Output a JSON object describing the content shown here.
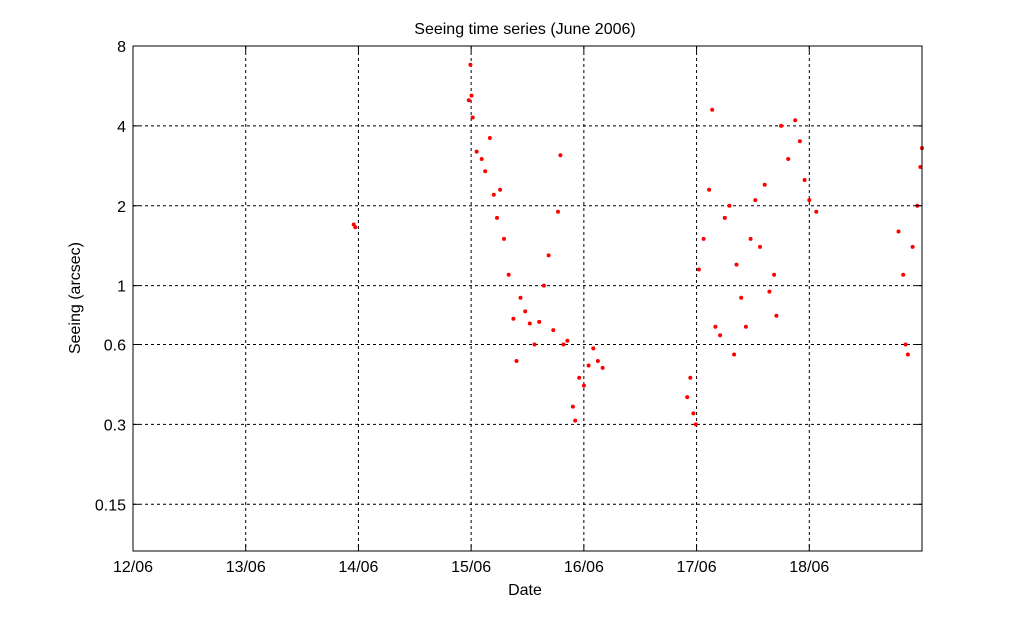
{
  "chart_data": {
    "type": "scatter",
    "title": "Seeing time series (June 2006)",
    "xlabel": "Date",
    "ylabel": "Seeing (arcsec)",
    "x_scale": "date",
    "y_scale": "log",
    "xlim": [
      "2006-06-12",
      "2006-06-19"
    ],
    "ylim": [
      0.1,
      8
    ],
    "x_ticks": [
      "12/06",
      "13/06",
      "14/06",
      "15/06",
      "16/06",
      "17/06",
      "18/06"
    ],
    "y_ticks": [
      0.15,
      0.3,
      0.6,
      1,
      2,
      4,
      8
    ],
    "y_tick_labels": [
      "0.15",
      "0.3",
      "0.6",
      "1",
      "2",
      "4",
      "8"
    ],
    "grid": true,
    "marker_color": "#ff0000",
    "series": [
      {
        "points": [
          [
            "2006-06-13 23:00",
            1.7
          ],
          [
            "2006-06-13 23:20",
            1.66
          ],
          [
            "2006-06-14 23:30",
            5.0
          ],
          [
            "2006-06-14 23:50",
            6.8
          ],
          [
            "2006-06-15 00:05",
            5.2
          ],
          [
            "2006-06-15 00:20",
            4.3
          ],
          [
            "2006-06-15 01:10",
            3.2
          ],
          [
            "2006-06-15 02:15",
            3.0
          ],
          [
            "2006-06-15 03:00",
            2.7
          ],
          [
            "2006-06-15 04:00",
            3.6
          ],
          [
            "2006-06-15 04:50",
            2.2
          ],
          [
            "2006-06-15 05:30",
            1.8
          ],
          [
            "2006-06-15 06:10",
            2.3
          ],
          [
            "2006-06-15 07:00",
            1.5
          ],
          [
            "2006-06-15 08:00",
            1.1
          ],
          [
            "2006-06-15 09:00",
            0.75
          ],
          [
            "2006-06-15 09:40",
            0.52
          ],
          [
            "2006-06-15 10:30",
            0.9
          ],
          [
            "2006-06-15 11:30",
            0.8
          ],
          [
            "2006-06-15 12:30",
            0.72
          ],
          [
            "2006-06-15 13:30",
            0.6
          ],
          [
            "2006-06-15 14:30",
            0.73
          ],
          [
            "2006-06-15 15:30",
            1.0
          ],
          [
            "2006-06-15 16:30",
            1.3
          ],
          [
            "2006-06-15 17:30",
            0.68
          ],
          [
            "2006-06-15 18:30",
            1.9
          ],
          [
            "2006-06-15 19:00",
            3.1
          ],
          [
            "2006-06-15 19:40",
            0.6
          ],
          [
            "2006-06-15 20:30",
            0.62
          ],
          [
            "2006-06-15 21:40",
            0.35
          ],
          [
            "2006-06-15 22:10",
            0.31
          ],
          [
            "2006-06-15 23:00",
            0.45
          ],
          [
            "2006-06-16 00:00",
            0.42
          ],
          [
            "2006-06-16 01:00",
            0.5
          ],
          [
            "2006-06-16 02:00",
            0.58
          ],
          [
            "2006-06-16 03:00",
            0.52
          ],
          [
            "2006-06-16 04:00",
            0.49
          ],
          [
            "2006-06-16 22:00",
            0.38
          ],
          [
            "2006-06-16 22:40",
            0.45
          ],
          [
            "2006-06-16 23:20",
            0.33
          ],
          [
            "2006-06-16 23:50",
            0.3
          ],
          [
            "2006-06-17 00:30",
            1.15
          ],
          [
            "2006-06-17 01:30",
            1.5
          ],
          [
            "2006-06-17 02:40",
            2.3
          ],
          [
            "2006-06-17 03:20",
            4.6
          ],
          [
            "2006-06-17 04:00",
            0.7
          ],
          [
            "2006-06-17 05:00",
            0.65
          ],
          [
            "2006-06-17 06:00",
            1.8
          ],
          [
            "2006-06-17 07:00",
            2.0
          ],
          [
            "2006-06-17 08:00",
            0.55
          ],
          [
            "2006-06-17 08:30",
            1.2
          ],
          [
            "2006-06-17 09:30",
            0.9
          ],
          [
            "2006-06-17 10:30",
            0.7
          ],
          [
            "2006-06-17 11:30",
            1.5
          ],
          [
            "2006-06-17 12:30",
            2.1
          ],
          [
            "2006-06-17 13:30",
            1.4
          ],
          [
            "2006-06-17 14:30",
            2.4
          ],
          [
            "2006-06-17 15:30",
            0.95
          ],
          [
            "2006-06-17 16:30",
            1.1
          ],
          [
            "2006-06-17 17:00",
            0.77
          ],
          [
            "2006-06-17 18:00",
            4.0
          ],
          [
            "2006-06-17 19:30",
            3.0
          ],
          [
            "2006-06-17 21:00",
            4.2
          ],
          [
            "2006-06-17 22:00",
            3.5
          ],
          [
            "2006-06-17 23:00",
            2.5
          ],
          [
            "2006-06-18 00:00",
            2.1
          ],
          [
            "2006-06-18 01:30",
            1.9
          ],
          [
            "2006-06-18 19:00",
            1.6
          ],
          [
            "2006-06-18 20:00",
            1.1
          ],
          [
            "2006-06-18 20:30",
            0.6
          ],
          [
            "2006-06-18 21:00",
            0.55
          ],
          [
            "2006-06-18 22:00",
            1.4
          ],
          [
            "2006-06-18 23:00",
            2.0
          ],
          [
            "2006-06-18 23:40",
            2.8
          ],
          [
            "2006-06-19 00:00",
            3.3
          ]
        ]
      }
    ]
  }
}
